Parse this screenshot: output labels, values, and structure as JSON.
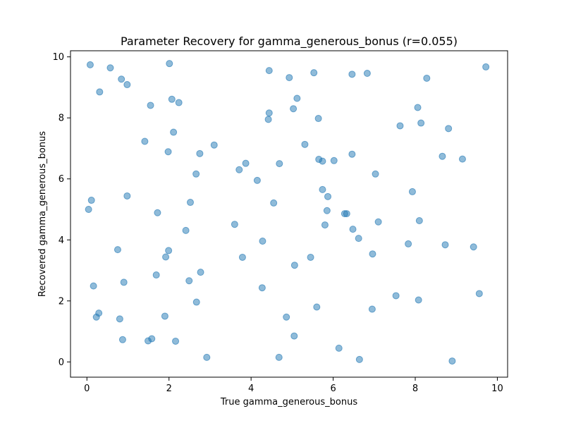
{
  "chart_data": {
    "type": "scatter",
    "title": "Parameter Recovery for gamma_generous_bonus (r=0.055)",
    "xlabel": "True gamma_generous_bonus",
    "ylabel": "Recovered gamma_generous_bonus",
    "xlim": [
      -0.4,
      10.25
    ],
    "ylim": [
      -0.5,
      10.2
    ],
    "xticks": [
      0,
      2,
      4,
      6,
      8,
      10
    ],
    "yticks": [
      0,
      2,
      4,
      6,
      8,
      10
    ],
    "grid": false,
    "point_color": "#1f77b4",
    "points": [
      [
        0.08,
        9.74
      ],
      [
        0.57,
        9.64
      ],
      [
        2.01,
        9.78
      ],
      [
        0.84,
        9.27
      ],
      [
        0.98,
        9.09
      ],
      [
        0.31,
        8.85
      ],
      [
        4.44,
        9.55
      ],
      [
        4.93,
        9.32
      ],
      [
        5.53,
        9.48
      ],
      [
        6.46,
        9.43
      ],
      [
        6.83,
        9.46
      ],
      [
        8.28,
        9.3
      ],
      [
        9.72,
        9.67
      ],
      [
        1.55,
        8.41
      ],
      [
        2.07,
        8.61
      ],
      [
        2.24,
        8.5
      ],
      [
        4.44,
        8.16
      ],
      [
        4.42,
        7.95
      ],
      [
        5.03,
        8.3
      ],
      [
        5.12,
        8.64
      ],
      [
        5.64,
        7.98
      ],
      [
        8.06,
        8.34
      ],
      [
        8.14,
        7.83
      ],
      [
        7.63,
        7.74
      ],
      [
        8.81,
        7.65
      ],
      [
        2.11,
        7.53
      ],
      [
        1.41,
        7.23
      ],
      [
        1.98,
        6.89
      ],
      [
        2.75,
        6.83
      ],
      [
        3.1,
        7.11
      ],
      [
        5.31,
        7.13
      ],
      [
        6.46,
        6.81
      ],
      [
        5.65,
        6.64
      ],
      [
        5.74,
        6.58
      ],
      [
        6.02,
        6.6
      ],
      [
        8.66,
        6.74
      ],
      [
        9.15,
        6.65
      ],
      [
        2.66,
        6.16
      ],
      [
        3.71,
        6.3
      ],
      [
        3.87,
        6.51
      ],
      [
        4.15,
        5.95
      ],
      [
        4.69,
        6.5
      ],
      [
        7.03,
        6.16
      ],
      [
        0.11,
        5.3
      ],
      [
        0.98,
        5.44
      ],
      [
        0.04,
        5.0
      ],
      [
        1.72,
        4.89
      ],
      [
        2.52,
        5.23
      ],
      [
        4.55,
        5.21
      ],
      [
        5.74,
        5.65
      ],
      [
        5.87,
        5.42
      ],
      [
        5.85,
        4.96
      ],
      [
        6.28,
        4.86
      ],
      [
        6.33,
        4.86
      ],
      [
        7.93,
        5.58
      ],
      [
        3.6,
        4.51
      ],
      [
        2.41,
        4.31
      ],
      [
        5.8,
        4.49
      ],
      [
        6.48,
        4.35
      ],
      [
        6.62,
        4.05
      ],
      [
        7.1,
        4.59
      ],
      [
        8.1,
        4.63
      ],
      [
        0.75,
        3.68
      ],
      [
        1.99,
        3.65
      ],
      [
        1.92,
        3.44
      ],
      [
        3.79,
        3.43
      ],
      [
        4.28,
        3.96
      ],
      [
        5.45,
        3.43
      ],
      [
        5.06,
        3.17
      ],
      [
        6.96,
        3.54
      ],
      [
        7.83,
        3.87
      ],
      [
        8.73,
        3.84
      ],
      [
        9.42,
        3.77
      ],
      [
        1.69,
        2.85
      ],
      [
        2.77,
        2.94
      ],
      [
        0.9,
        2.61
      ],
      [
        0.16,
        2.49
      ],
      [
        2.49,
        2.66
      ],
      [
        4.27,
        2.43
      ],
      [
        2.67,
        1.96
      ],
      [
        0.29,
        1.6
      ],
      [
        0.23,
        1.47
      ],
      [
        0.8,
        1.41
      ],
      [
        1.9,
        1.5
      ],
      [
        4.86,
        1.47
      ],
      [
        5.6,
        1.8
      ],
      [
        6.95,
        1.73
      ],
      [
        7.53,
        2.17
      ],
      [
        8.08,
        2.03
      ],
      [
        9.56,
        2.24
      ],
      [
        0.87,
        0.73
      ],
      [
        1.49,
        0.69
      ],
      [
        1.58,
        0.76
      ],
      [
        2.16,
        0.68
      ],
      [
        2.92,
        0.15
      ],
      [
        4.68,
        0.15
      ],
      [
        5.05,
        0.85
      ],
      [
        6.14,
        0.45
      ],
      [
        6.64,
        0.08
      ],
      [
        8.9,
        0.03
      ]
    ]
  }
}
